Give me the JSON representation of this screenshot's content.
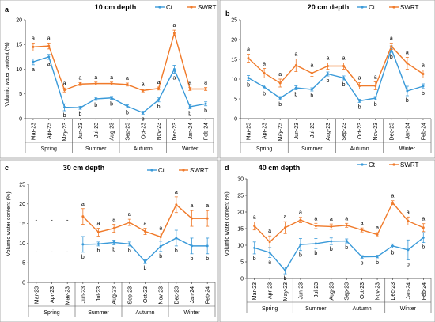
{
  "series_colors": {
    "Ct": "#3a9ad9",
    "SWRT": "#f07a2a"
  },
  "chart_data": [
    {
      "type": "line",
      "panel": "a",
      "title": "10 cm depth",
      "ylabel": "Volumic water content (%)",
      "ylim": [
        0,
        20
      ],
      "yticks": [
        0,
        5,
        10,
        15,
        20
      ],
      "x": [
        "Mar-23",
        "Apr-23",
        "May-23",
        "Jun-23",
        "Jul-23",
        "Aug-23",
        "Sep-23",
        "Oct-23",
        "Nov-23",
        "Dec-23",
        "Jan-24",
        "Feb-24"
      ],
      "seasons": [
        "Spring",
        "Summer",
        "Autumn",
        "Winter"
      ],
      "legend": [
        "Ct",
        "SWRT"
      ],
      "series": [
        {
          "name": "Ct",
          "values": [
            11.5,
            12.5,
            2.3,
            2.2,
            4.0,
            4.2,
            2.5,
            1.2,
            3.8,
            10.0,
            2.4,
            3.0
          ],
          "errors": [
            0.6,
            0.5,
            0.7,
            0.3,
            0.3,
            0.3,
            0.3,
            0.3,
            0.4,
            0.8,
            0.4,
            0.4
          ],
          "labels": [
            "a",
            "a",
            "b",
            "b",
            "b",
            "b",
            "b",
            "b",
            "b",
            "a",
            "b",
            "b"
          ]
        },
        {
          "name": "SWRT",
          "values": [
            14.5,
            14.7,
            5.8,
            7.0,
            7.1,
            7.1,
            6.9,
            5.7,
            6.1,
            17.3,
            6.0,
            6.0
          ],
          "errors": [
            0.8,
            0.6,
            0.4,
            0.3,
            0.3,
            0.3,
            0.3,
            0.3,
            0.3,
            0.6,
            0.3,
            0.3
          ],
          "labels": [
            "a",
            "a",
            "a",
            "a",
            "a",
            "a",
            "a",
            "a",
            "a",
            "a",
            "a",
            "a"
          ]
        }
      ]
    },
    {
      "type": "line",
      "panel": "b",
      "title": "20 cm depth",
      "ylabel": "",
      "ylim": [
        0,
        25
      ],
      "yticks": [
        0,
        5,
        10,
        15,
        20,
        25
      ],
      "x": [
        "Mar-23",
        "Apr-23",
        "May-23",
        "Jun-23",
        "Jul-23",
        "Aug-23",
        "Sep-23",
        "Oct-23",
        "Nov-23",
        "Dec-23",
        "Jan-24",
        "Feb-24"
      ],
      "seasons": [
        "Spring",
        "Summer",
        "Autumn",
        "Winter"
      ],
      "legend": [
        "Ct",
        "SWRT"
      ],
      "series": [
        {
          "name": "Ct",
          "values": [
            10.3,
            8.0,
            5.2,
            7.8,
            7.4,
            11.3,
            10.3,
            4.5,
            5.2,
            17.6,
            7.0,
            8.2
          ],
          "errors": [
            0.6,
            0.5,
            0.4,
            0.5,
            0.4,
            0.5,
            0.5,
            0.4,
            0.4,
            0.8,
            1.2,
            0.6
          ],
          "labels": [
            "b",
            "b",
            "b",
            "b",
            "b",
            "b",
            "b",
            "b",
            "b",
            "b",
            "b",
            "b"
          ]
        },
        {
          "name": "SWRT",
          "values": [
            15.3,
            11.5,
            9.0,
            13.5,
            11.5,
            13.3,
            13.3,
            8.3,
            8.3,
            18.3,
            14.0,
            11.3
          ],
          "errors": [
            1.0,
            1.2,
            1.0,
            1.6,
            0.8,
            0.8,
            0.8,
            0.8,
            1.0,
            0.8,
            1.5,
            1.0
          ],
          "labels": [
            "a",
            "a",
            "a",
            "a",
            "a",
            "a",
            "a",
            "a",
            "a",
            "a",
            "a",
            "a"
          ]
        }
      ]
    },
    {
      "type": "line",
      "panel": "c",
      "title": "30 cm depth",
      "ylabel": "Volumic water content (%)",
      "ylim": [
        0,
        25
      ],
      "yticks": [
        0,
        5,
        10,
        15,
        20,
        25
      ],
      "x": [
        "Mar-23",
        "Apr-23",
        "May-23",
        "Jun-23",
        "Jul-23",
        "Aug-23",
        "Sep-23",
        "Oct-23",
        "Nov-23",
        "Dec-23",
        "Jan-24",
        "Feb-24"
      ],
      "seasons": [
        "Spring",
        "Summer",
        "Autumn",
        "Winter"
      ],
      "legend": [
        "Ct",
        "SWRT"
      ],
      "missing_mark": "-",
      "series": [
        {
          "name": "Ct",
          "values": [
            null,
            null,
            null,
            9.7,
            9.8,
            10.2,
            9.8,
            5.3,
            9.2,
            11.3,
            9.3,
            9.3
          ],
          "errors": [
            0,
            0,
            0,
            2.0,
            0.5,
            0.6,
            0.5,
            0.5,
            1.3,
            2.0,
            2.0,
            2.0
          ],
          "labels": [
            "",
            "",
            "",
            "b",
            "b",
            "b",
            "b",
            "b",
            "b",
            "b",
            "b",
            "b"
          ]
        },
        {
          "name": "SWRT",
          "values": [
            null,
            null,
            null,
            16.8,
            12.8,
            13.8,
            15.3,
            13.0,
            11.6,
            19.8,
            16.3,
            16.3
          ],
          "errors": [
            0,
            0,
            0,
            2.0,
            1.0,
            1.0,
            0.8,
            0.8,
            1.0,
            2.0,
            2.0,
            2.0
          ],
          "labels": [
            "",
            "",
            "",
            "a",
            "a",
            "a",
            "a",
            "a",
            "a",
            "a",
            "a",
            "a"
          ]
        }
      ]
    },
    {
      "type": "line",
      "panel": "d",
      "title": "40 cm depth",
      "ylabel": "Volumic water content (%)",
      "ylim": [
        0,
        30
      ],
      "yticks": [
        0,
        5,
        10,
        15,
        20,
        25,
        30
      ],
      "x": [
        "Mar-23",
        "Apr-23",
        "May-23",
        "Jun-23",
        "Jul-23",
        "Aug-23",
        "Sep-23",
        "Oct-23",
        "Nov-23",
        "Dec-23",
        "Jan-24",
        "Feb-24"
      ],
      "seasons": [
        "Spring",
        "Summer",
        "Autumn",
        "Winter"
      ],
      "legend": [
        "Ct",
        "SWRT"
      ],
      "series": [
        {
          "name": "Ct",
          "values": [
            9.2,
            7.8,
            2.4,
            10.2,
            10.5,
            11.2,
            11.3,
            6.5,
            6.6,
            9.8,
            8.6,
            12.3
          ],
          "errors": [
            1.8,
            1.5,
            1.0,
            1.8,
            1.5,
            1.0,
            0.6,
            0.4,
            0.4,
            0.6,
            3.0,
            1.5
          ],
          "labels": [
            "b",
            "a",
            "b",
            "b",
            "b",
            "b",
            "b",
            "b",
            "b",
            "b",
            "b",
            "b"
          ]
        },
        {
          "name": "SWRT",
          "values": [
            15.8,
            11.0,
            15.3,
            17.6,
            15.8,
            15.6,
            16.0,
            14.6,
            13.2,
            22.8,
            17.3,
            15.3
          ],
          "errors": [
            1.2,
            1.8,
            1.8,
            0.8,
            0.8,
            0.8,
            0.6,
            0.6,
            0.6,
            0.6,
            1.2,
            1.2
          ],
          "labels": [
            "a",
            "a",
            "a",
            "a",
            "a",
            "a",
            "a",
            "a",
            "a",
            "a",
            "a",
            "a"
          ]
        }
      ]
    }
  ]
}
